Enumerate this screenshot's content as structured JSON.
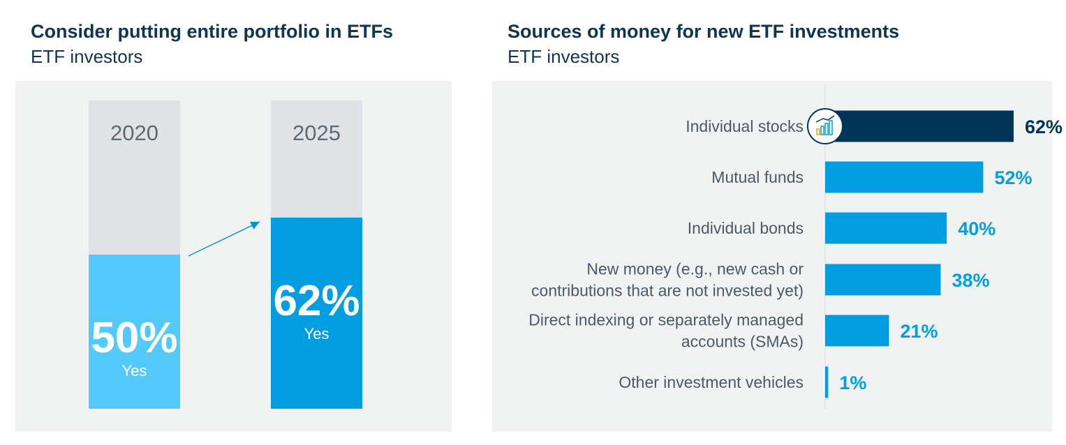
{
  "colors": {
    "panel_bg": "#f1f2f2",
    "bar_track": "#dfe3e6",
    "light_blue": "#53c9fc",
    "mid_blue": "#039ee1",
    "navy": "#003558",
    "label_gray": "#4a5a66",
    "title_navy": "#0f3553"
  },
  "left_panel": {
    "title": "Consider putting entire portfolio in ETFs",
    "subtitle": "ETF investors"
  },
  "right_panel": {
    "title": "Sources of money for new ETF investments",
    "subtitle": "ETF investors"
  },
  "chart_data": [
    {
      "type": "bar",
      "title": "Consider putting entire portfolio in ETFs",
      "subtitle": "ETF investors",
      "categories": [
        "2020",
        "2025"
      ],
      "values": [
        50,
        62
      ],
      "value_labels": [
        "50%",
        "62%"
      ],
      "segment_label": "Yes",
      "ylim": [
        0,
        100
      ],
      "grid": false,
      "annotation": "arrow from 2020 bar to 2025 bar"
    },
    {
      "type": "bar",
      "orientation": "horizontal",
      "title": "Sources of money for new ETF investments",
      "subtitle": "ETF investors",
      "categories": [
        "Individual stocks",
        "Mutual funds",
        "Individual bonds",
        "New money (e.g., new cash or contributions that are not invested yet)",
        "Direct indexing or separately managed accounts (SMAs)",
        "Other investment vehicles"
      ],
      "category_lines": [
        [
          "Individual stocks"
        ],
        [
          "Mutual funds"
        ],
        [
          "Individual bonds"
        ],
        [
          "New money (e.g., new cash or",
          "contributions that are not invested yet)"
        ],
        [
          "Direct indexing or separately managed",
          "accounts (SMAs)"
        ],
        [
          "Other investment vehicles"
        ]
      ],
      "values": [
        62,
        52,
        40,
        38,
        21,
        1
      ],
      "value_labels": [
        "62%",
        "52%",
        "40%",
        "38%",
        "21%",
        "1%"
      ],
      "highlight_index": 0,
      "highlight_icon": "bar-chart-growth-icon",
      "xlim": [
        0,
        100
      ],
      "grid": false,
      "legend": "none"
    }
  ]
}
